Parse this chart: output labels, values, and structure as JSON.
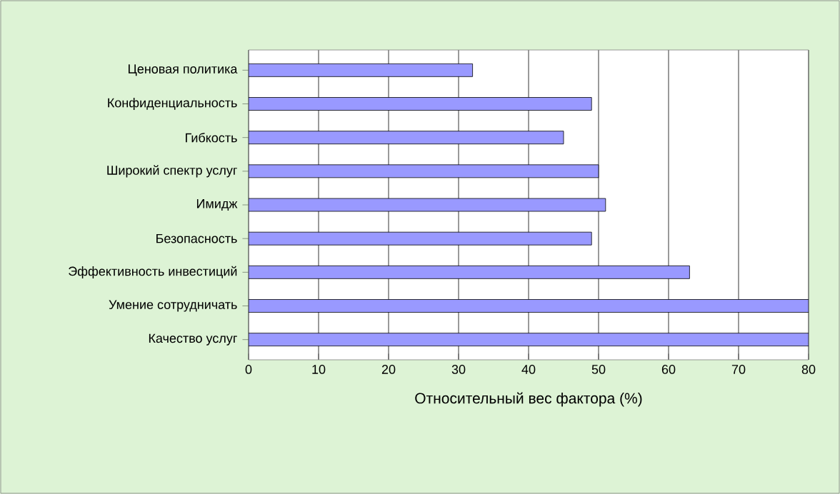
{
  "chart_data": {
    "type": "bar",
    "orientation": "horizontal",
    "xlabel": "Относительный вес фактора (%)",
    "categories": [
      "Ценовая политика",
      "Конфиденциальность",
      "Гибкость",
      "Широкий спектр услуг",
      "Имидж",
      "Безопасность",
      "Эффективность инвестиций",
      "Умение сотрудничать",
      "Качество услуг"
    ],
    "values": [
      32,
      49,
      45,
      50,
      51,
      49,
      63,
      80,
      80
    ],
    "color": "#9999ff",
    "xlim": [
      0,
      80
    ],
    "xticks": [
      0,
      10,
      20,
      30,
      40,
      50,
      60,
      70,
      80
    ],
    "grid": "x"
  }
}
